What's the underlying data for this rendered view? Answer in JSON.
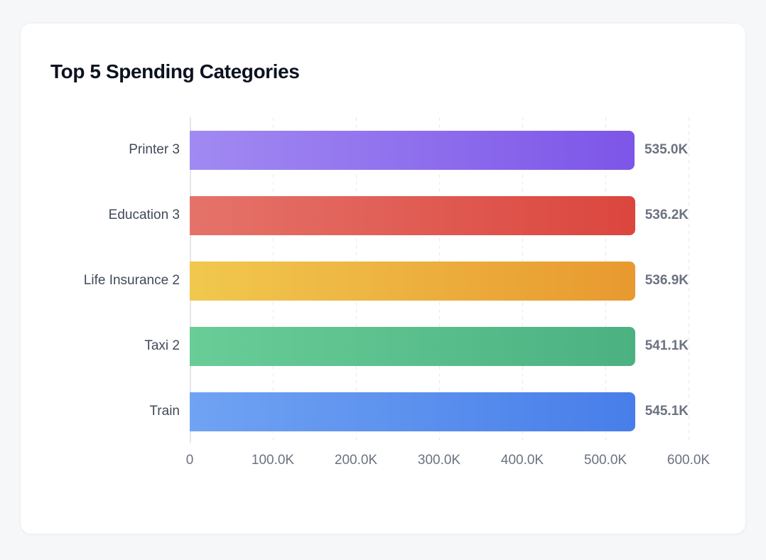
{
  "card": {
    "title": "Top 5 Spending Categories"
  },
  "chart_data": {
    "type": "bar",
    "orientation": "horizontal",
    "title": "Top 5 Spending Categories",
    "categories": [
      "Printer 3",
      "Education 3",
      "Life Insurance 2",
      "Taxi 2",
      "Train"
    ],
    "values": [
      535000,
      536200,
      536900,
      541100,
      545100
    ],
    "value_labels": [
      "535.0K",
      "536.2K",
      "536.9K",
      "541.1K",
      "545.1K"
    ],
    "x_ticks": [
      "0",
      "100.0K",
      "200.0K",
      "300.0K",
      "400.0K",
      "500.0K",
      "600.0K"
    ],
    "x_tick_values": [
      0,
      100000,
      200000,
      300000,
      400000,
      500000,
      600000
    ],
    "xlim": [
      0,
      600000
    ],
    "xlabel": "",
    "ylabel": "",
    "legend": "none",
    "grid": "vertical-dashed",
    "bar_colors": [
      {
        "name": "purple",
        "from": "#a18af2",
        "to": "#7d55e8"
      },
      {
        "name": "red",
        "from": "#e5736a",
        "to": "#db463e"
      },
      {
        "name": "yellow",
        "from": "#f1c84e",
        "to": "#e8992f"
      },
      {
        "name": "green",
        "from": "#68cd97",
        "to": "#4bb181"
      },
      {
        "name": "blue",
        "from": "#70a3f3",
        "to": "#477ee9"
      }
    ]
  },
  "colors": {
    "background": "#f6f7f9",
    "card_background": "#ffffff",
    "title_text": "#0c1220",
    "category_text": "#404a59",
    "value_text": "#6b7280",
    "tick_text": "#6b7280",
    "grid_line": "#e7e9ee"
  }
}
